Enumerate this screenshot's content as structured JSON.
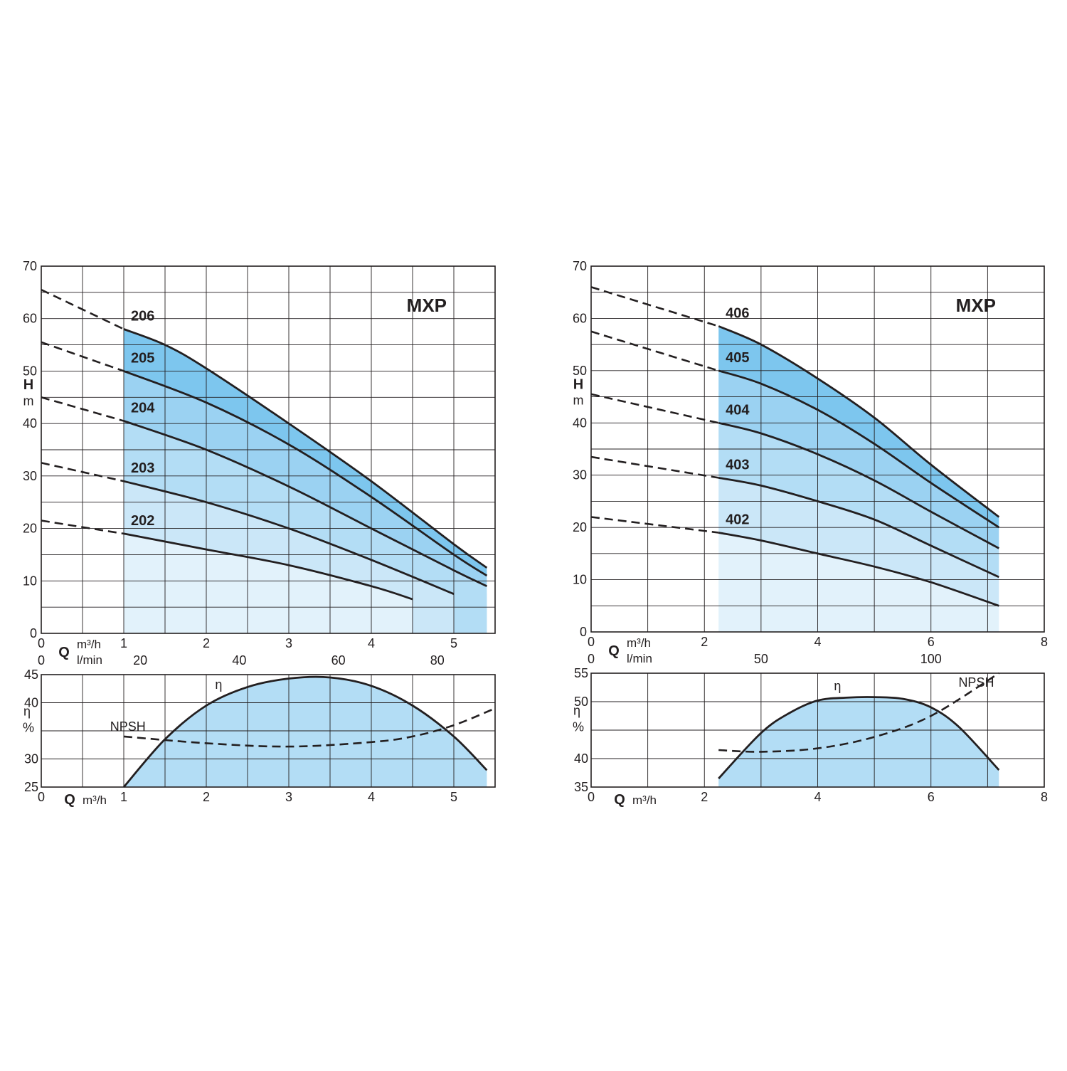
{
  "chart_data": [
    {
      "type": "line",
      "panel": "head-left",
      "title": "MXP",
      "ylabel": "H",
      "yunit": "m",
      "xlabel": "Q",
      "xunit": "m³/h",
      "xunit2": "l/min",
      "xlim": [
        0,
        5.5
      ],
      "ylim": [
        0,
        70
      ],
      "x_ticks": [
        "0",
        "1",
        "2",
        "3",
        "4",
        "5"
      ],
      "y_ticks": [
        "0",
        "10",
        "20",
        "30",
        "40",
        "50",
        "60",
        "70"
      ],
      "x2_ticks": [
        "0",
        "20",
        "40",
        "60",
        "80"
      ],
      "x2_tick_values_m3h": [
        0,
        1.2,
        2.4,
        3.6,
        4.8
      ],
      "grid": true,
      "shaded_region_x": [
        1,
        5.4
      ],
      "series": [
        {
          "name": "202",
          "dashed": {
            "x": [
              0,
              1
            ],
            "y": [
              21.5,
              19
            ]
          },
          "x": [
            1,
            2,
            3,
            4,
            4.5
          ],
          "y": [
            19,
            16,
            13,
            9,
            6.5
          ]
        },
        {
          "name": "203",
          "dashed": {
            "x": [
              0,
              1
            ],
            "y": [
              32.5,
              29
            ]
          },
          "x": [
            1,
            2,
            3,
            4,
            5
          ],
          "y": [
            29,
            25,
            20,
            14,
            7.5
          ]
        },
        {
          "name": "204",
          "dashed": {
            "x": [
              0,
              1
            ],
            "y": [
              45,
              40.5
            ]
          },
          "x": [
            1,
            2,
            3,
            4,
            5,
            5.4
          ],
          "y": [
            40.5,
            35,
            28,
            20,
            12,
            9
          ]
        },
        {
          "name": "205",
          "dashed": {
            "x": [
              0,
              1
            ],
            "y": [
              55.5,
              50
            ]
          },
          "x": [
            1,
            2,
            3,
            4,
            5,
            5.4
          ],
          "y": [
            50,
            44,
            36,
            26,
            15,
            11
          ]
        },
        {
          "name": "206",
          "dashed": {
            "x": [
              0,
              1
            ],
            "y": [
              65.5,
              58
            ]
          },
          "x": [
            1,
            1.5,
            2,
            3,
            4,
            5,
            5.4
          ],
          "y": [
            58,
            55,
            50.5,
            40,
            29,
            17,
            12.5
          ]
        }
      ]
    },
    {
      "type": "area",
      "panel": "eff-left",
      "ylabel": "η",
      "yunit": "%",
      "xlabel": "Q",
      "xunit": "m³/h",
      "xlim": [
        0,
        5.5
      ],
      "ylim": [
        25,
        45
      ],
      "x_ticks": [
        "0",
        "1",
        "2",
        "3",
        "4",
        "5"
      ],
      "y_ticks": [
        "25",
        "30",
        "40",
        "45"
      ],
      "y_tick_values": [
        25,
        30,
        40,
        45
      ],
      "grid": true,
      "series": [
        {
          "name": "η",
          "x": [
            1,
            1.5,
            2,
            2.5,
            3,
            3.5,
            4,
            4.5,
            5,
            5.4
          ],
          "y": [
            25,
            33.5,
            39.5,
            42.8,
            44.3,
            44.5,
            43,
            39.5,
            34,
            28
          ]
        },
        {
          "name": "NPSH",
          "dashed": true,
          "x": [
            1,
            2,
            3,
            4,
            4.5,
            5,
            5.5
          ],
          "y": [
            34,
            32.8,
            32.2,
            33,
            34,
            36,
            39
          ]
        }
      ]
    },
    {
      "type": "line",
      "panel": "head-right",
      "title": "MXP",
      "ylabel": "H",
      "yunit": "m",
      "xlabel": "Q",
      "xunit": "m³/h",
      "xunit2": "l/min",
      "xlim": [
        0,
        8
      ],
      "ylim": [
        0,
        70
      ],
      "x_ticks": [
        "0",
        "2",
        "4",
        "6",
        "8"
      ],
      "y_ticks": [
        "0",
        "10",
        "20",
        "30",
        "40",
        "50",
        "60",
        "70"
      ],
      "x2_ticks": [
        "0",
        "50",
        "100"
      ],
      "x2_tick_values_m3h": [
        0,
        3,
        6
      ],
      "grid": true,
      "shaded_region_x": [
        2.25,
        7.2
      ],
      "series": [
        {
          "name": "402",
          "dashed": {
            "x": [
              0,
              2.25
            ],
            "y": [
              22,
              19
            ]
          },
          "x": [
            2.25,
            3,
            4,
            5,
            6,
            7.2
          ],
          "y": [
            19,
            17.5,
            15,
            12.5,
            9.5,
            5
          ]
        },
        {
          "name": "403",
          "dashed": {
            "x": [
              0,
              2.25
            ],
            "y": [
              33.5,
              29.5
            ]
          },
          "x": [
            2.25,
            3,
            4,
            5,
            6,
            7.2
          ],
          "y": [
            29.5,
            28,
            25,
            21.5,
            16.5,
            10.5
          ]
        },
        {
          "name": "404",
          "dashed": {
            "x": [
              0,
              2.25
            ],
            "y": [
              45.5,
              40
            ]
          },
          "x": [
            2.25,
            3,
            4,
            5,
            6,
            7.2
          ],
          "y": [
            40,
            38,
            34,
            29,
            23,
            16
          ]
        },
        {
          "name": "405",
          "dashed": {
            "x": [
              0,
              2.25
            ],
            "y": [
              57.5,
              50
            ]
          },
          "x": [
            2.25,
            3,
            4,
            5,
            6,
            7.2
          ],
          "y": [
            50,
            47.5,
            42.5,
            36,
            28.5,
            20
          ]
        },
        {
          "name": "406",
          "dashed": {
            "x": [
              0,
              2.25
            ],
            "y": [
              66,
              58.5
            ]
          },
          "x": [
            2.25,
            3,
            4,
            5,
            6,
            7.2
          ],
          "y": [
            58.5,
            55,
            48.5,
            41,
            32,
            22
          ]
        }
      ]
    },
    {
      "type": "area",
      "panel": "eff-right",
      "ylabel": "η",
      "yunit": "%",
      "xlabel": "Q",
      "xunit": "m³/h",
      "xlim": [
        0,
        8
      ],
      "ylim": [
        35,
        55
      ],
      "x_ticks": [
        "0",
        "2",
        "4",
        "6",
        "8"
      ],
      "y_ticks": [
        "35",
        "40",
        "50",
        "55"
      ],
      "y_tick_values": [
        35,
        40,
        50,
        55
      ],
      "grid": true,
      "series": [
        {
          "name": "η",
          "x": [
            2.25,
            3,
            3.5,
            4,
            4.5,
            5,
            5.5,
            6,
            6.5,
            7.2
          ],
          "y": [
            36.5,
            44.5,
            48,
            50.2,
            50.7,
            50.8,
            50.5,
            49,
            45.5,
            38
          ]
        },
        {
          "name": "NPSH",
          "dashed": true,
          "x": [
            2.25,
            3,
            4,
            5,
            6,
            7.2
          ],
          "y": [
            41.5,
            41.2,
            41.8,
            43.8,
            47.5,
            55
          ]
        }
      ]
    }
  ]
}
